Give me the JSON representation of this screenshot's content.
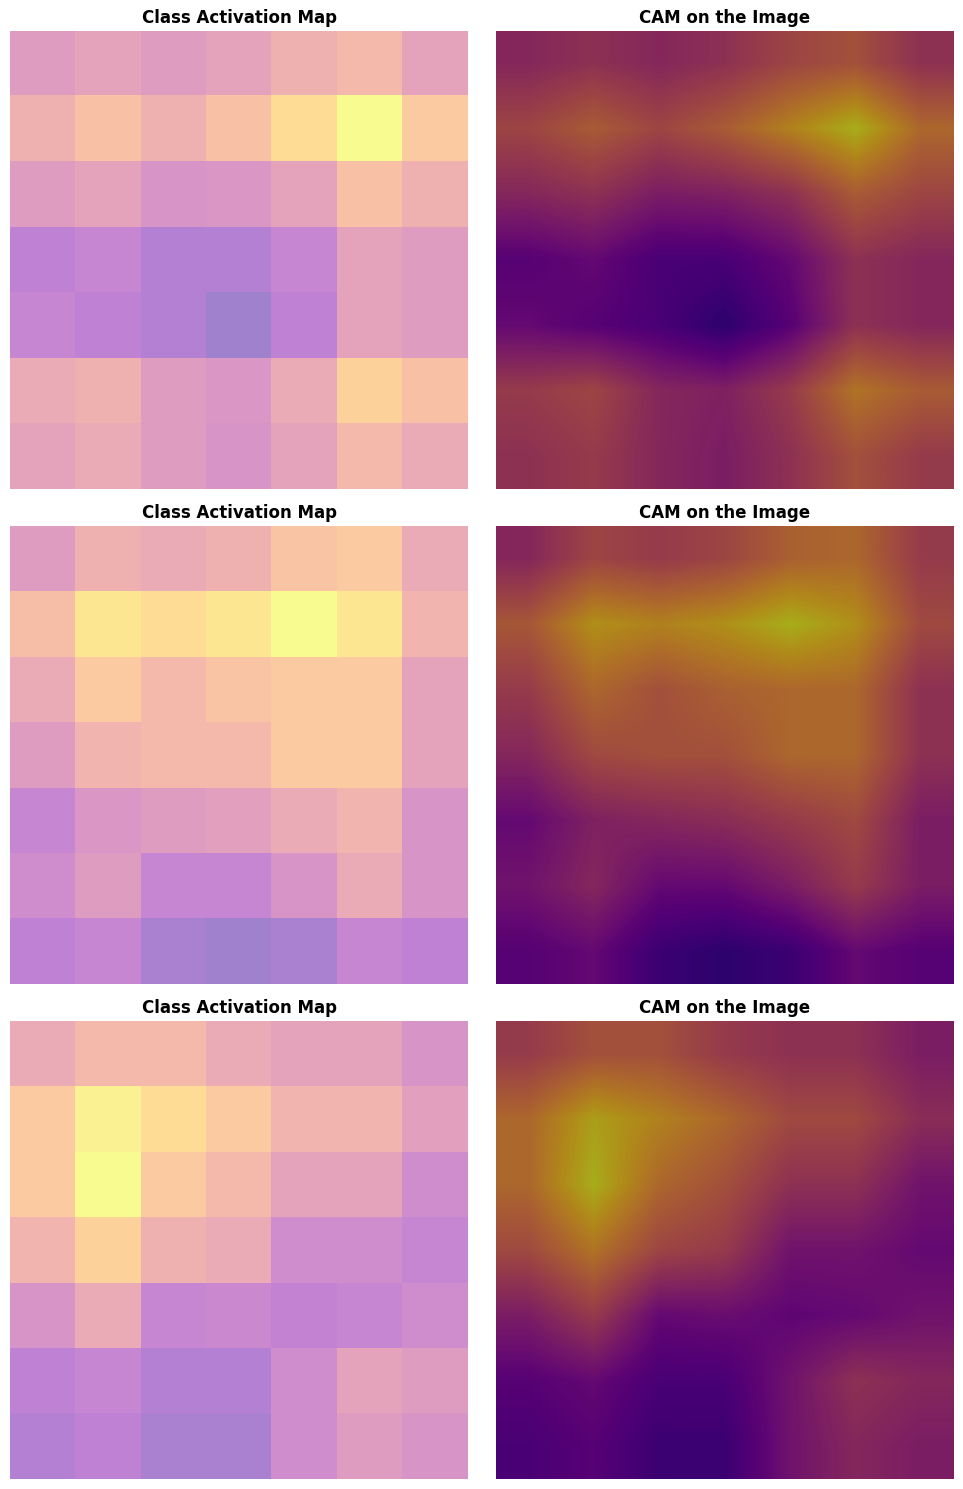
{
  "chart_data": [
    {
      "type": "heatmap",
      "title": "Class Activation Map",
      "tick_labels": false,
      "value_range": [
        0,
        1
      ],
      "cells": [
        [
          0.45,
          0.5,
          0.45,
          0.5,
          0.6,
          0.65,
          0.5
        ],
        [
          0.6,
          0.7,
          0.6,
          0.7,
          0.85,
          1.0,
          0.75
        ],
        [
          0.45,
          0.5,
          0.4,
          0.42,
          0.5,
          0.7,
          0.6
        ],
        [
          0.25,
          0.3,
          0.2,
          0.2,
          0.3,
          0.5,
          0.45
        ],
        [
          0.3,
          0.25,
          0.2,
          0.1,
          0.25,
          0.5,
          0.45
        ],
        [
          0.55,
          0.6,
          0.45,
          0.42,
          0.55,
          0.8,
          0.7
        ],
        [
          0.5,
          0.55,
          0.45,
          0.4,
          0.5,
          0.65,
          0.55
        ]
      ]
    },
    {
      "type": "image_overlay",
      "title": "CAM on the Image",
      "tick_labels": false,
      "value_range": [
        0,
        1
      ],
      "cells": [
        [
          0.45,
          0.5,
          0.45,
          0.5,
          0.6,
          0.65,
          0.5
        ],
        [
          0.6,
          0.7,
          0.6,
          0.7,
          0.85,
          1.0,
          0.75
        ],
        [
          0.45,
          0.5,
          0.4,
          0.42,
          0.5,
          0.7,
          0.6
        ],
        [
          0.25,
          0.3,
          0.2,
          0.2,
          0.3,
          0.5,
          0.45
        ],
        [
          0.3,
          0.25,
          0.2,
          0.1,
          0.25,
          0.5,
          0.45
        ],
        [
          0.55,
          0.6,
          0.45,
          0.42,
          0.55,
          0.8,
          0.7
        ],
        [
          0.5,
          0.55,
          0.45,
          0.4,
          0.5,
          0.65,
          0.55
        ]
      ]
    },
    {
      "type": "heatmap",
      "title": "Class Activation Map",
      "tick_labels": false,
      "value_range": [
        0,
        1
      ],
      "cells": [
        [
          0.45,
          0.6,
          0.55,
          0.6,
          0.72,
          0.75,
          0.55
        ],
        [
          0.68,
          0.9,
          0.85,
          0.9,
          1.0,
          0.9,
          0.62
        ],
        [
          0.55,
          0.75,
          0.65,
          0.72,
          0.75,
          0.75,
          0.5
        ],
        [
          0.45,
          0.62,
          0.65,
          0.65,
          0.75,
          0.75,
          0.5
        ],
        [
          0.3,
          0.42,
          0.45,
          0.48,
          0.55,
          0.62,
          0.4
        ],
        [
          0.35,
          0.45,
          0.3,
          0.3,
          0.4,
          0.55,
          0.4
        ],
        [
          0.25,
          0.3,
          0.15,
          0.1,
          0.15,
          0.3,
          0.25
        ]
      ]
    },
    {
      "type": "image_overlay",
      "title": "CAM on the Image",
      "tick_labels": false,
      "value_range": [
        0,
        1
      ],
      "cells": [
        [
          0.45,
          0.6,
          0.55,
          0.6,
          0.72,
          0.75,
          0.55
        ],
        [
          0.68,
          0.9,
          0.85,
          0.9,
          1.0,
          0.9,
          0.62
        ],
        [
          0.55,
          0.75,
          0.65,
          0.72,
          0.75,
          0.75,
          0.5
        ],
        [
          0.45,
          0.62,
          0.65,
          0.65,
          0.75,
          0.75,
          0.5
        ],
        [
          0.3,
          0.42,
          0.45,
          0.48,
          0.55,
          0.62,
          0.4
        ],
        [
          0.35,
          0.45,
          0.3,
          0.3,
          0.4,
          0.55,
          0.4
        ],
        [
          0.25,
          0.3,
          0.15,
          0.1,
          0.15,
          0.3,
          0.25
        ]
      ]
    },
    {
      "type": "heatmap",
      "title": "Class Activation Map",
      "tick_labels": false,
      "value_range": [
        0,
        1
      ],
      "cells": [
        [
          0.55,
          0.65,
          0.65,
          0.55,
          0.5,
          0.5,
          0.4
        ],
        [
          0.75,
          0.95,
          0.85,
          0.75,
          0.62,
          0.62,
          0.48
        ],
        [
          0.75,
          1.0,
          0.75,
          0.65,
          0.5,
          0.5,
          0.35
        ],
        [
          0.62,
          0.8,
          0.6,
          0.55,
          0.35,
          0.35,
          0.3
        ],
        [
          0.4,
          0.55,
          0.3,
          0.32,
          0.28,
          0.3,
          0.35
        ],
        [
          0.25,
          0.3,
          0.2,
          0.2,
          0.35,
          0.5,
          0.45
        ],
        [
          0.2,
          0.25,
          0.15,
          0.15,
          0.35,
          0.45,
          0.4
        ]
      ]
    },
    {
      "type": "image_overlay",
      "title": "CAM on the Image",
      "tick_labels": false,
      "value_range": [
        0,
        1
      ],
      "cells": [
        [
          0.55,
          0.65,
          0.65,
          0.55,
          0.5,
          0.5,
          0.4
        ],
        [
          0.75,
          0.95,
          0.85,
          0.75,
          0.62,
          0.62,
          0.48
        ],
        [
          0.75,
          1.0,
          0.75,
          0.65,
          0.5,
          0.5,
          0.35
        ],
        [
          0.62,
          0.8,
          0.6,
          0.55,
          0.35,
          0.35,
          0.3
        ],
        [
          0.4,
          0.55,
          0.3,
          0.32,
          0.28,
          0.3,
          0.35
        ],
        [
          0.25,
          0.3,
          0.2,
          0.2,
          0.35,
          0.5,
          0.45
        ],
        [
          0.2,
          0.25,
          0.15,
          0.15,
          0.35,
          0.45,
          0.4
        ]
      ]
    }
  ]
}
